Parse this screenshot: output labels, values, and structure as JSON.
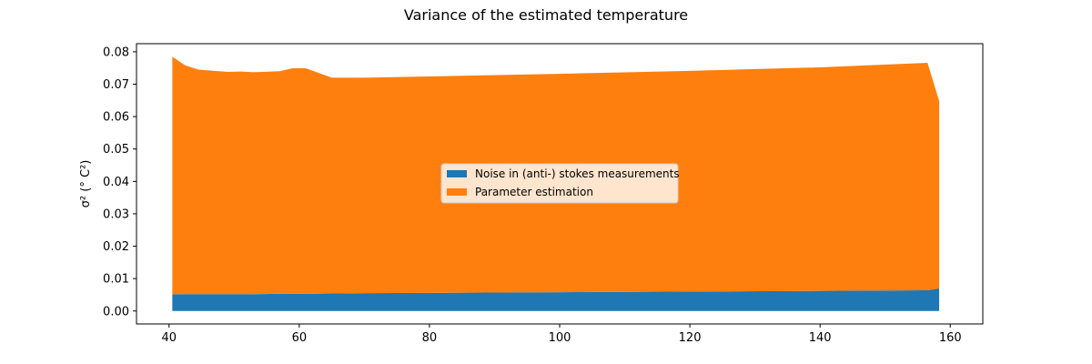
{
  "chart_data": {
    "type": "area",
    "stacked": true,
    "title": "Variance of the estimated temperature",
    "xlabel": "",
    "ylabel": "σ² (° C²)",
    "xlim": [
      35,
      165
    ],
    "ylim": [
      -0.004,
      0.0825
    ],
    "xticks": [
      40,
      60,
      80,
      100,
      120,
      140,
      160
    ],
    "yticks": [
      0.0,
      0.01,
      0.02,
      0.03,
      0.04,
      0.05,
      0.06,
      0.07,
      0.08
    ],
    "ytick_labels": [
      "0.00",
      "0.01",
      "0.02",
      "0.03",
      "0.04",
      "0.05",
      "0.06",
      "0.07",
      "0.08"
    ],
    "grid": false,
    "legend_position": "center",
    "x": [
      40.5,
      42.5,
      44.5,
      49,
      51,
      53,
      57,
      59,
      61,
      65,
      70,
      80,
      100,
      120,
      140,
      156.5,
      158.3
    ],
    "series": [
      {
        "name": "Noise in (anti-) stokes measurements",
        "color": "#1f77b4",
        "values": [
          0.0052,
          0.0052,
          0.0052,
          0.0052,
          0.0052,
          0.0052,
          0.0053,
          0.0053,
          0.0053,
          0.0054,
          0.0055,
          0.0056,
          0.0058,
          0.006,
          0.0062,
          0.0064,
          0.007
        ]
      },
      {
        "name": "Parameter estimation",
        "color": "#ff7f0e",
        "values": [
          0.0733,
          0.0706,
          0.0693,
          0.0686,
          0.0687,
          0.0685,
          0.0687,
          0.0696,
          0.0696,
          0.0666,
          0.0665,
          0.0668,
          0.0674,
          0.0681,
          0.069,
          0.0702,
          0.0578
        ]
      }
    ]
  }
}
